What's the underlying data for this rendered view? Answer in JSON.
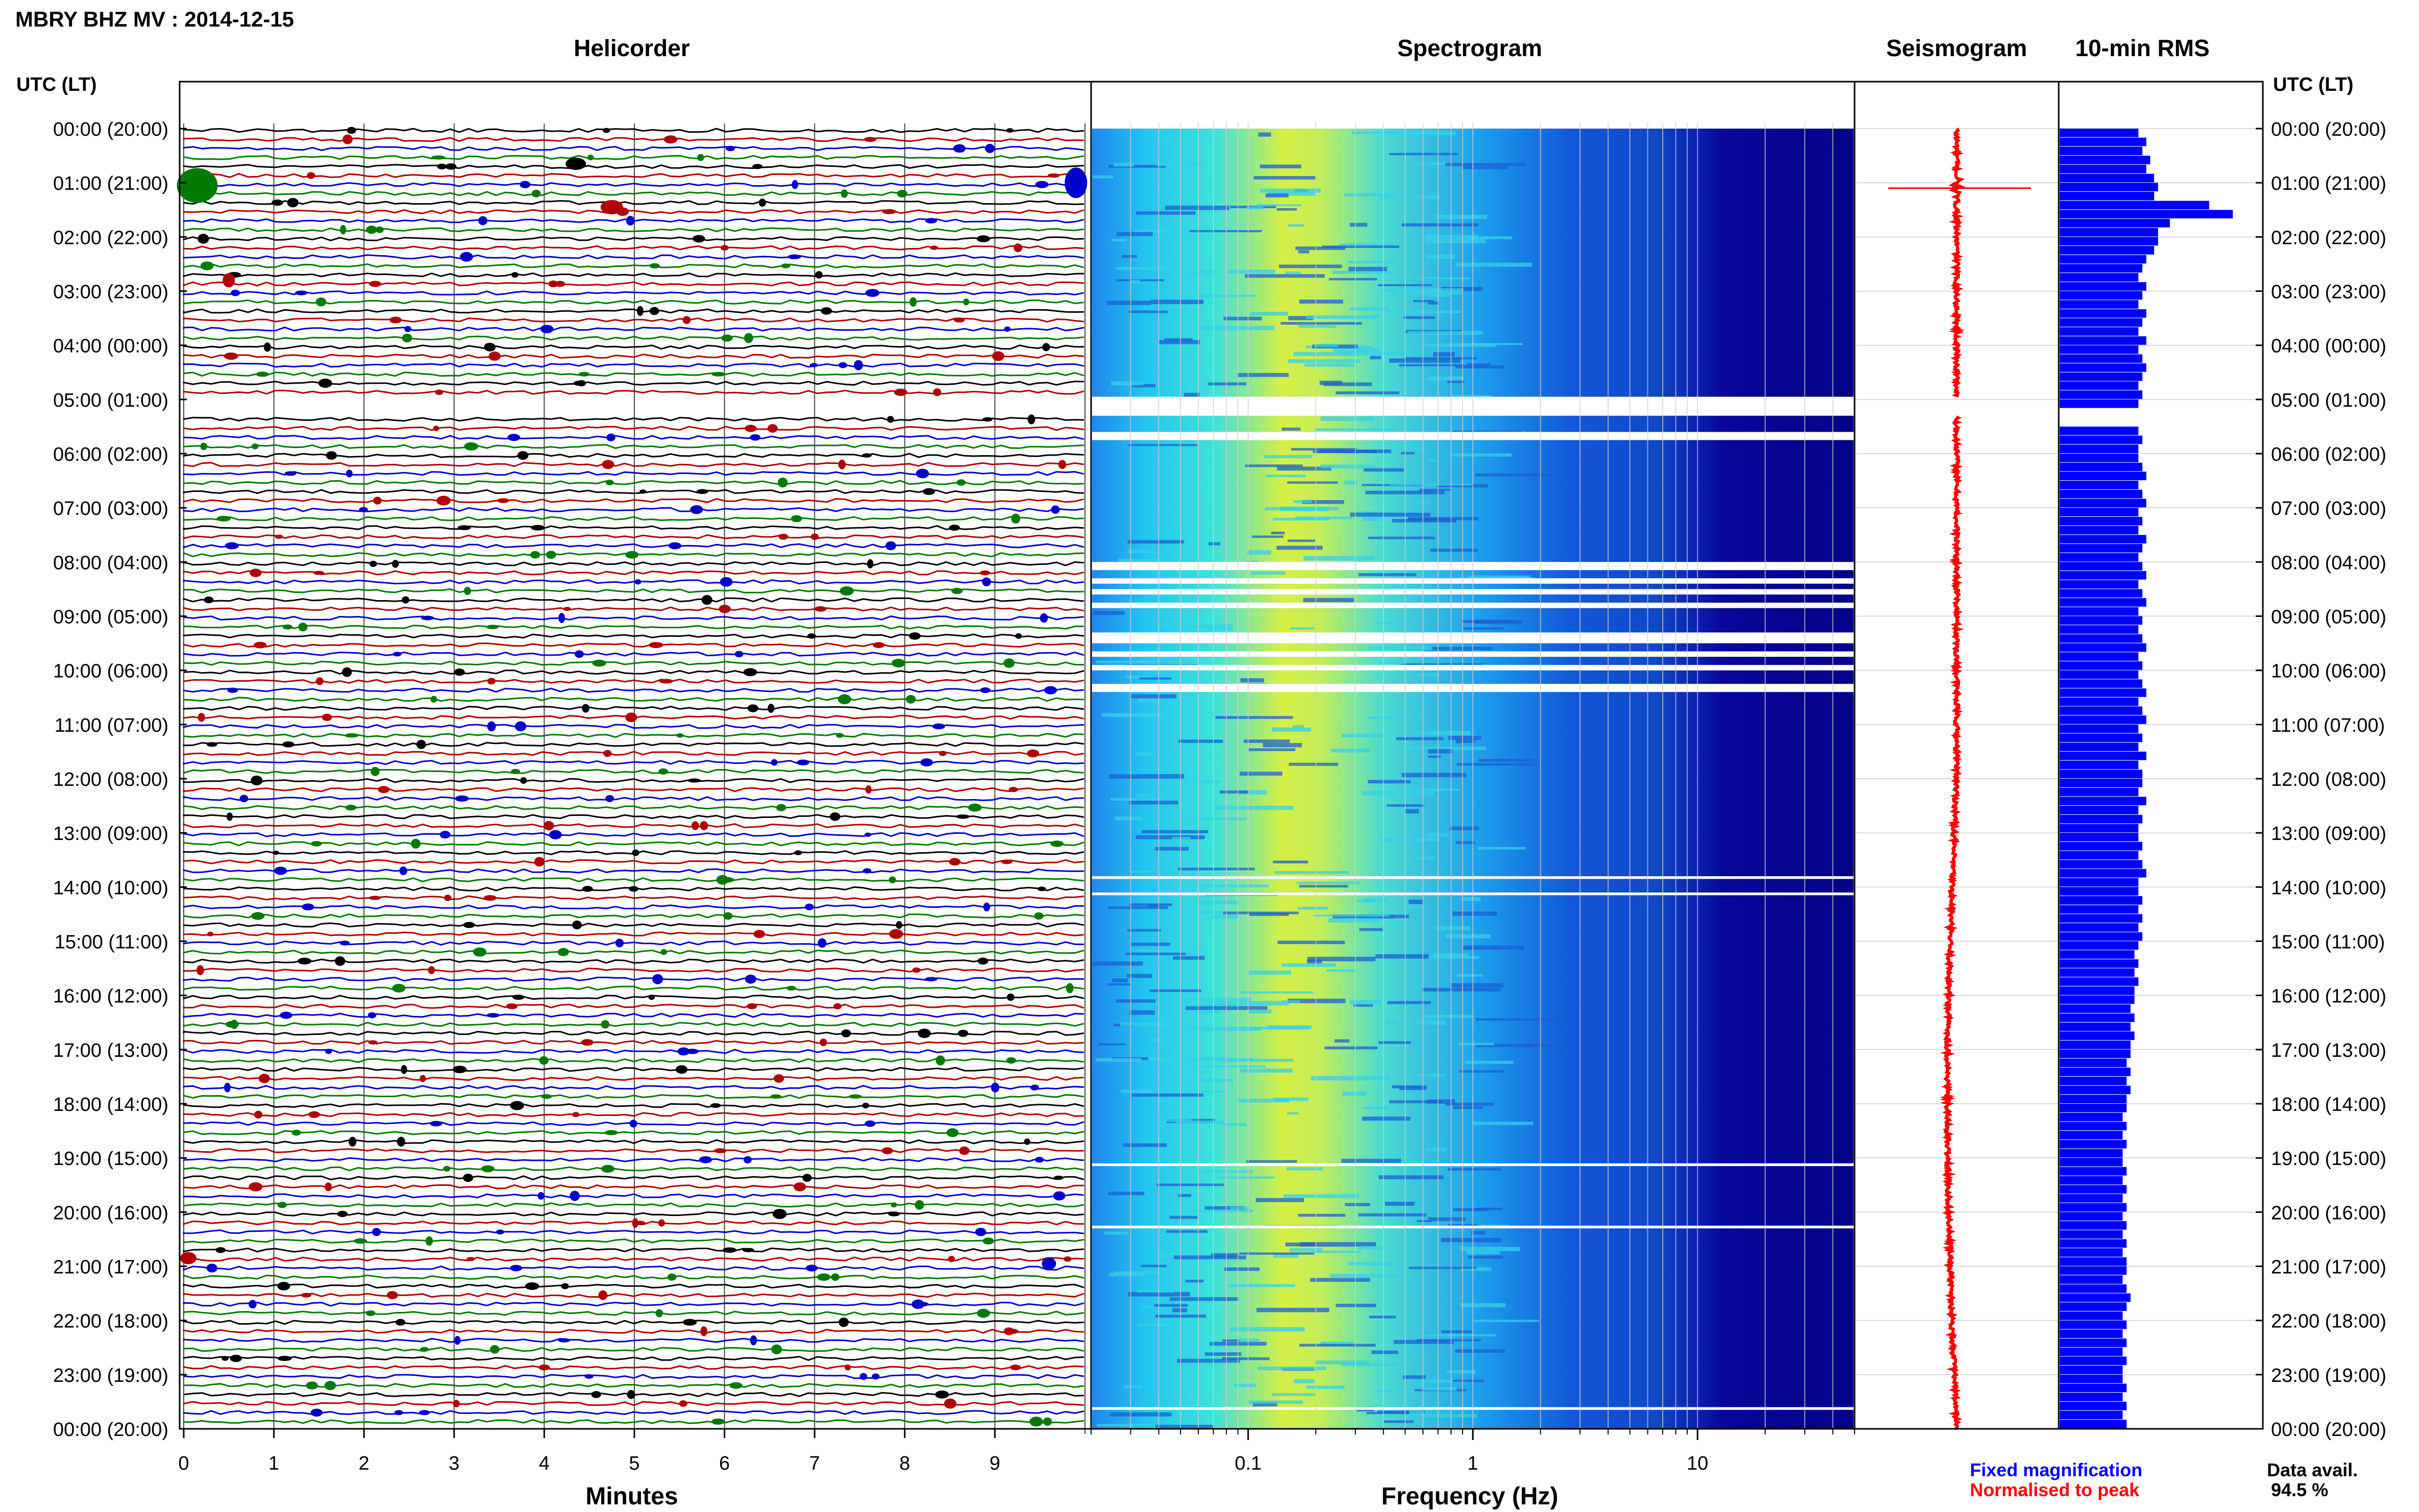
{
  "header": {
    "title": "MBRY BHZ MV : 2014-12-15"
  },
  "time_axis": {
    "label": "UTC (LT)",
    "ticks": [
      "00:00 (20:00)",
      "01:00 (21:00)",
      "02:00 (22:00)",
      "03:00 (23:00)",
      "04:00 (00:00)",
      "05:00 (01:00)",
      "06:00 (02:00)",
      "07:00 (03:00)",
      "08:00 (04:00)",
      "09:00 (05:00)",
      "10:00 (06:00)",
      "11:00 (07:00)",
      "12:00 (08:00)",
      "13:00 (09:00)",
      "14:00 (10:00)",
      "15:00 (11:00)",
      "16:00 (12:00)",
      "17:00 (13:00)",
      "18:00 (14:00)",
      "19:00 (15:00)",
      "20:00 (16:00)",
      "21:00 (17:00)",
      "22:00 (18:00)",
      "23:00 (19:00)",
      "00:00 (20:00)"
    ]
  },
  "panels": {
    "helicorder": {
      "title": "Helicorder",
      "xlabel": "Minutes",
      "xticks": [
        "0",
        "1",
        "2",
        "3",
        "4",
        "5",
        "6",
        "7",
        "8",
        "9"
      ]
    },
    "spectrogram": {
      "title": "Spectrogram",
      "xlabel": "Frequency (Hz)",
      "xticks": [
        "0.1",
        "1",
        "10"
      ]
    },
    "seismogram": {
      "title": "Seismogram"
    },
    "rms": {
      "title": "10-min RMS"
    }
  },
  "footer": {
    "legend_fixed": "Fixed magnification",
    "legend_normalised": "Normalised to peak",
    "data_avail_label": "Data avail.",
    "data_avail_value": "94.5 %"
  },
  "colors": {
    "fixed_magnification": "#0000ff",
    "normalised_to_peak": "#ff0000",
    "helicorder_traces": [
      "#000000",
      "#b00000",
      "#0000cc",
      "#007a00"
    ],
    "rms_bars": "#0000ff"
  },
  "chart_data": [
    {
      "type": "line",
      "panel": "helicorder",
      "title": "Helicorder",
      "xlabel": "Minutes",
      "x_range": [
        0,
        10
      ],
      "rows_per_hour": 6,
      "gaps_hours": [
        [
          4.95,
          5.3
        ]
      ]
    },
    {
      "type": "heatmap",
      "panel": "spectrogram",
      "title": "Spectrogram",
      "xlabel": "Frequency (Hz)",
      "x_scale": "log",
      "x_range": [
        0.02,
        50
      ],
      "peak_frequency_hz": 0.2,
      "gaps_hours": [
        [
          4.95,
          5.3
        ],
        [
          5.6,
          5.75
        ],
        [
          8.0,
          8.15
        ],
        [
          8.3,
          8.4
        ],
        [
          8.5,
          8.6
        ],
        [
          8.75,
          8.85
        ],
        [
          9.3,
          9.5
        ],
        [
          9.65,
          9.75
        ],
        [
          9.9,
          10.0
        ],
        [
          10.25,
          10.4
        ],
        [
          13.8,
          13.85
        ],
        [
          14.1,
          14.15
        ],
        [
          19.1,
          19.15
        ],
        [
          20.25,
          20.3
        ],
        [
          23.6,
          23.65
        ]
      ]
    },
    {
      "type": "line",
      "panel": "seismogram",
      "title": "Seismogram"
    },
    {
      "type": "bar",
      "panel": "rms",
      "title": "10-min RMS",
      "orientation": "horizontal",
      "bin_minutes": 10,
      "values": [
        1.0,
        1.1,
        1.05,
        1.15,
        1.1,
        1.2,
        1.25,
        1.2,
        1.9,
        2.2,
        1.4,
        1.25,
        1.25,
        1.2,
        1.1,
        1.05,
        1.0,
        1.1,
        1.05,
        1.0,
        1.1,
        1.05,
        1.0,
        1.1,
        1.0,
        1.05,
        1.1,
        1.05,
        1.0,
        1.05,
        1.0,
        null,
        null,
        1.0,
        1.05,
        1.0,
        1.0,
        1.05,
        1.1,
        1.0,
        1.05,
        1.1,
        1.0,
        1.05,
        1.0,
        1.1,
        1.05,
        1.0,
        1.05,
        1.1,
        1.0,
        1.05,
        1.1,
        1.0,
        1.05,
        1.0,
        1.05,
        1.1,
        1.0,
        1.05,
        1.0,
        1.05,
        1.1,
        1.0,
        1.05,
        1.1,
        1.0,
        1.05,
        1.0,
        1.1,
        1.0,
        1.05,
        1.05,
        1.0,
        1.1,
        1.0,
        1.05,
        1.0,
        1.0,
        1.05,
        1.0,
        1.05,
        1.1,
        1.0,
        1.0,
        1.05,
        1.0,
        1.05,
        1.0,
        1.05,
        1.0,
        0.95,
        1.0,
        0.95,
        1.0,
        0.95,
        0.95,
        0.9,
        0.95,
        0.9,
        0.95,
        0.9,
        0.9,
        0.85,
        0.9,
        0.85,
        0.9,
        0.85,
        0.85,
        0.8,
        0.85,
        0.8,
        0.85,
        0.8,
        0.8,
        0.85,
        0.8,
        0.85,
        0.8,
        0.85,
        0.8,
        0.85,
        0.8,
        0.85,
        0.8,
        0.85,
        0.85,
        0.8,
        0.85,
        0.9,
        0.85,
        0.8,
        0.85,
        0.8,
        0.85,
        0.8,
        0.85,
        0.8,
        0.8,
        0.85,
        0.8,
        0.85,
        0.8,
        0.85
      ]
    }
  ]
}
